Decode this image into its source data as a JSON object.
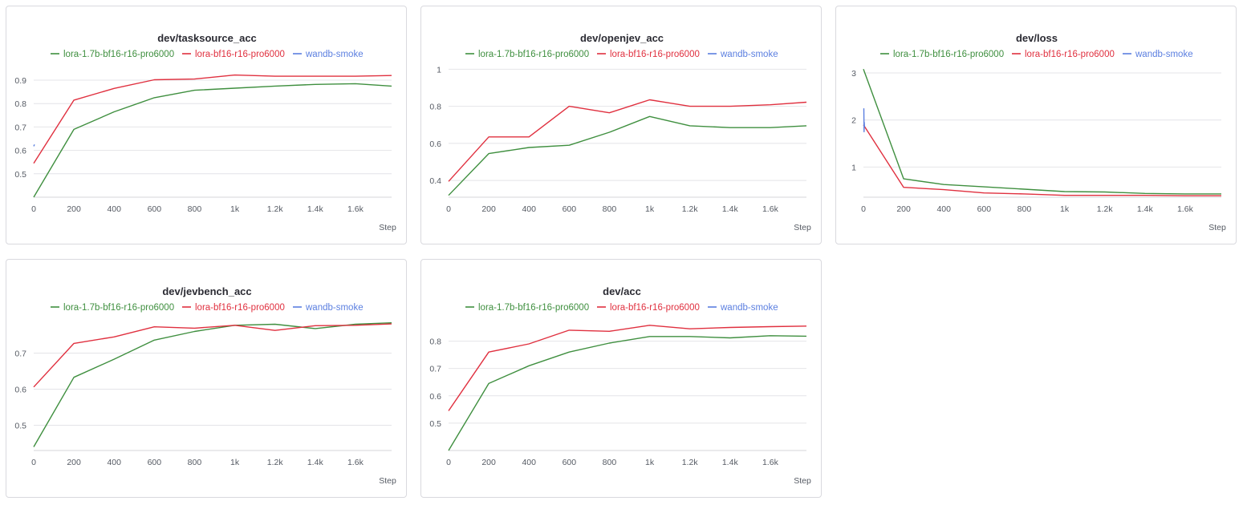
{
  "colors": {
    "lora-1.7b-bf16-r16-pro6000": "#3f8f3f",
    "lora-bf16-r16-pro6000": "#e0303f",
    "wandb-smoke": "#5b7fe0"
  },
  "legend": [
    "lora-1.7b-bf16-r16-pro6000",
    "lora-bf16-r16-pro6000",
    "wandb-smoke"
  ],
  "chart_data": [
    {
      "type": "line",
      "title": "dev/tasksource_acc",
      "xlabel": "Step",
      "xlim": [
        0,
        1780
      ],
      "ylim": [
        0.4,
        0.955
      ],
      "xticks": [
        0,
        200,
        400,
        600,
        800,
        1000,
        1200,
        1400,
        1600
      ],
      "xtick_labels": [
        "0",
        "200",
        "400",
        "600",
        "800",
        "1k",
        "1.2k",
        "1.4k",
        "1.6k"
      ],
      "yticks": [
        0.5,
        0.6,
        0.7,
        0.8,
        0.9
      ],
      "ytick_labels": [
        "0.5",
        "0.6",
        "0.7",
        "0.8",
        "0.9"
      ],
      "grid": true,
      "legend_position": "top",
      "series": [
        {
          "name": "lora-1.7b-bf16-r16-pro6000",
          "x": [
            0,
            200,
            400,
            600,
            800,
            1000,
            1200,
            1400,
            1600,
            1780
          ],
          "y": [
            0.4,
            0.69,
            0.765,
            0.825,
            0.857,
            0.866,
            0.875,
            0.882,
            0.885,
            0.875
          ]
        },
        {
          "name": "lora-bf16-r16-pro6000",
          "x": [
            0,
            200,
            400,
            600,
            800,
            1000,
            1200,
            1400,
            1600,
            1780
          ],
          "y": [
            0.545,
            0.815,
            0.865,
            0.902,
            0.905,
            0.922,
            0.917,
            0.917,
            0.917,
            0.92
          ]
        },
        {
          "name": "wandb-smoke",
          "x": [
            0,
            4
          ],
          "y": [
            0.618,
            0.625
          ]
        }
      ]
    },
    {
      "type": "line",
      "title": "dev/openjev_acc",
      "xlabel": "Step",
      "xlim": [
        0,
        1780
      ],
      "ylim": [
        0.31,
        1.01
      ],
      "xticks": [
        0,
        200,
        400,
        600,
        800,
        1000,
        1200,
        1400,
        1600
      ],
      "xtick_labels": [
        "0",
        "200",
        "400",
        "600",
        "800",
        "1k",
        "1.2k",
        "1.4k",
        "1.6k"
      ],
      "yticks": [
        0.4,
        0.6,
        0.8,
        1.0
      ],
      "ytick_labels": [
        "0.4",
        "0.6",
        "0.8",
        "1"
      ],
      "grid": true,
      "legend_position": "top",
      "series": [
        {
          "name": "lora-1.7b-bf16-r16-pro6000",
          "x": [
            0,
            200,
            400,
            600,
            800,
            1000,
            1200,
            1400,
            1600,
            1780
          ],
          "y": [
            0.32,
            0.545,
            0.578,
            0.59,
            0.66,
            0.745,
            0.695,
            0.685,
            0.685,
            0.695
          ]
        },
        {
          "name": "lora-bf16-r16-pro6000",
          "x": [
            0,
            200,
            400,
            600,
            800,
            1000,
            1200,
            1400,
            1600,
            1780
          ],
          "y": [
            0.395,
            0.635,
            0.635,
            0.8,
            0.765,
            0.835,
            0.8,
            0.8,
            0.808,
            0.822
          ]
        },
        {
          "name": "wandb-smoke",
          "x": [],
          "y": []
        }
      ]
    },
    {
      "type": "line",
      "title": "dev/loss",
      "xlabel": "Step",
      "xlim": [
        0,
        1780
      ],
      "ylim": [
        0.36,
        3.12
      ],
      "xticks": [
        0,
        200,
        400,
        600,
        800,
        1000,
        1200,
        1400,
        1600
      ],
      "xtick_labels": [
        "0",
        "200",
        "400",
        "600",
        "800",
        "1k",
        "1.2k",
        "1.4k",
        "1.6k"
      ],
      "yticks": [
        1,
        2,
        3
      ],
      "ytick_labels": [
        "1",
        "2",
        "3"
      ],
      "grid": true,
      "legend_position": "top",
      "series": [
        {
          "name": "lora-1.7b-bf16-r16-pro6000",
          "x": [
            0,
            200,
            400,
            600,
            800,
            1000,
            1200,
            1400,
            1600,
            1780
          ],
          "y": [
            3.08,
            0.75,
            0.63,
            0.58,
            0.53,
            0.48,
            0.47,
            0.44,
            0.43,
            0.43
          ]
        },
        {
          "name": "lora-bf16-r16-pro6000",
          "x": [
            0,
            200,
            400,
            600,
            800,
            1000,
            1200,
            1400,
            1600,
            1780
          ],
          "y": [
            1.9,
            0.57,
            0.52,
            0.45,
            0.43,
            0.4,
            0.4,
            0.4,
            0.39,
            0.39
          ]
        },
        {
          "name": "wandb-smoke",
          "x": [
            2,
            3,
            4,
            5
          ],
          "y": [
            2.25,
            1.75,
            1.95,
            1.85
          ]
        }
      ]
    },
    {
      "type": "line",
      "title": "dev/jevbench_acc",
      "xlabel": "Step",
      "xlim": [
        0,
        1780
      ],
      "ylim": [
        0.43,
        0.79
      ],
      "xticks": [
        0,
        200,
        400,
        600,
        800,
        1000,
        1200,
        1400,
        1600
      ],
      "xtick_labels": [
        "0",
        "200",
        "400",
        "600",
        "800",
        "1k",
        "1.2k",
        "1.4k",
        "1.6k"
      ],
      "yticks": [
        0.5,
        0.6,
        0.7
      ],
      "ytick_labels": [
        "0.5",
        "0.6",
        "0.7"
      ],
      "grid": true,
      "legend_position": "top",
      "series": [
        {
          "name": "lora-1.7b-bf16-r16-pro6000",
          "x": [
            0,
            200,
            400,
            600,
            800,
            1000,
            1200,
            1400,
            1600,
            1780
          ],
          "y": [
            0.44,
            0.633,
            0.683,
            0.736,
            0.76,
            0.777,
            0.78,
            0.768,
            0.78,
            0.784
          ]
        },
        {
          "name": "lora-bf16-r16-pro6000",
          "x": [
            0,
            200,
            400,
            600,
            800,
            1000,
            1200,
            1400,
            1600,
            1780
          ],
          "y": [
            0.606,
            0.727,
            0.745,
            0.773,
            0.769,
            0.777,
            0.763,
            0.776,
            0.777,
            0.781
          ]
        },
        {
          "name": "wandb-smoke",
          "x": [],
          "y": []
        }
      ]
    },
    {
      "type": "line",
      "title": "dev/acc",
      "xlabel": "Step",
      "xlim": [
        0,
        1780
      ],
      "ylim": [
        0.4,
        0.875
      ],
      "xticks": [
        0,
        200,
        400,
        600,
        800,
        1000,
        1200,
        1400,
        1600
      ],
      "xtick_labels": [
        "0",
        "200",
        "400",
        "600",
        "800",
        "1k",
        "1.2k",
        "1.4k",
        "1.6k"
      ],
      "yticks": [
        0.5,
        0.6,
        0.7,
        0.8
      ],
      "ytick_labels": [
        "0.5",
        "0.6",
        "0.7",
        "0.8"
      ],
      "grid": true,
      "legend_position": "top",
      "series": [
        {
          "name": "lora-1.7b-bf16-r16-pro6000",
          "x": [
            0,
            200,
            400,
            600,
            800,
            1000,
            1200,
            1400,
            1600,
            1780
          ],
          "y": [
            0.4,
            0.645,
            0.71,
            0.76,
            0.793,
            0.817,
            0.817,
            0.812,
            0.82,
            0.818
          ]
        },
        {
          "name": "lora-bf16-r16-pro6000",
          "x": [
            0,
            200,
            400,
            600,
            800,
            1000,
            1200,
            1400,
            1600,
            1780
          ],
          "y": [
            0.545,
            0.76,
            0.79,
            0.84,
            0.836,
            0.858,
            0.845,
            0.85,
            0.853,
            0.855
          ]
        },
        {
          "name": "wandb-smoke",
          "x": [],
          "y": []
        }
      ]
    }
  ]
}
